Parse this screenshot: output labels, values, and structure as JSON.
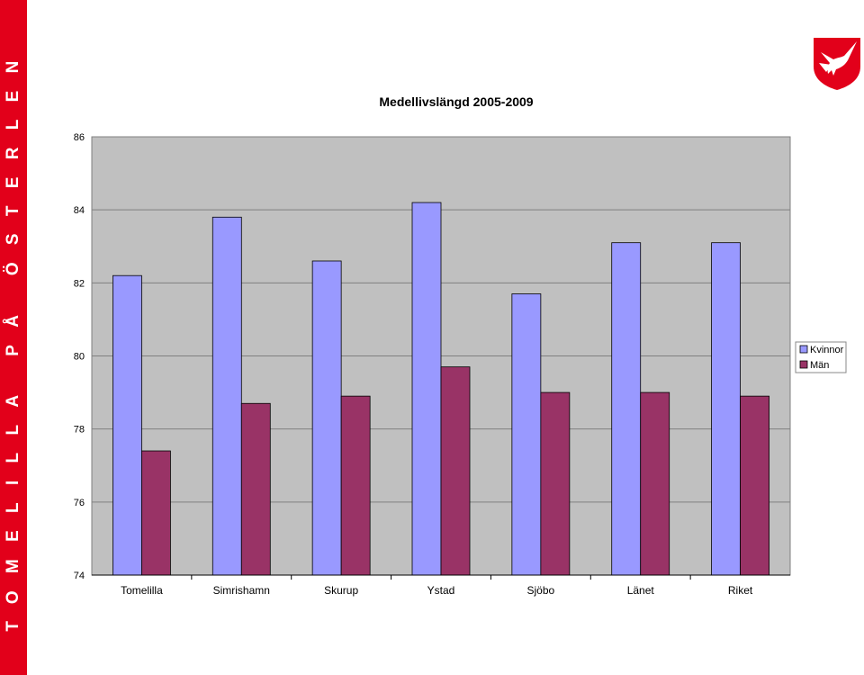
{
  "sidebar": {
    "text": "TOMELILLA PÅ ÖSTERLEN",
    "color": "#e2001a"
  },
  "logo": {
    "icon": "red-kite-shield-icon",
    "shield_color": "#e2001a",
    "bird_color": "#ffffff"
  },
  "chart_data": {
    "type": "bar",
    "title": "Medellivslängd 2005-2009",
    "xlabel": "",
    "ylabel": "",
    "categories": [
      "Tomelilla",
      "Simrishamn",
      "Skurup",
      "Ystad",
      "Sjöbo",
      "Länet",
      "Riket"
    ],
    "series": [
      {
        "name": "Kvinnor",
        "color": "#9999ff",
        "values": [
          82.2,
          83.8,
          82.6,
          84.2,
          81.7,
          83.1,
          83.1
        ]
      },
      {
        "name": "Män",
        "color": "#993366",
        "values": [
          77.4,
          78.7,
          78.9,
          79.7,
          79.0,
          79.0,
          78.9
        ]
      }
    ],
    "ylim": [
      74,
      86
    ],
    "yticks": [
      74,
      76,
      78,
      80,
      82,
      84,
      86
    ],
    "grid": true,
    "plot_background": "#c0c0c0",
    "legend": "right"
  }
}
